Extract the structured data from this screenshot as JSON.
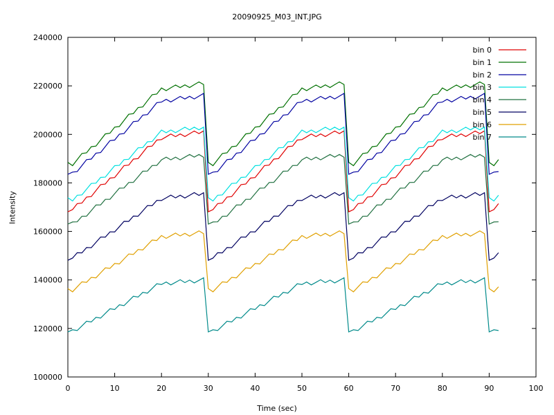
{
  "chart_data": {
    "type": "line",
    "title": "20090925_M03_INT.JPG",
    "xlabel": "Time (sec)",
    "ylabel": "Intensity",
    "xlim": [
      0,
      100
    ],
    "ylim": [
      100000,
      240000
    ],
    "xticks": [
      0,
      10,
      20,
      30,
      40,
      50,
      60,
      70,
      80,
      90,
      100
    ],
    "yticks": [
      100000,
      120000,
      140000,
      160000,
      180000,
      200000,
      220000,
      240000
    ],
    "grid": false,
    "legend_position": "top-right",
    "x": [
      0,
      1,
      2,
      3,
      4,
      5,
      6,
      7,
      8,
      9,
      10,
      11,
      12,
      13,
      14,
      15,
      16,
      17,
      18,
      19,
      20,
      21,
      22,
      23,
      24,
      25,
      26,
      27,
      28,
      29,
      30,
      31,
      32,
      33,
      34,
      35,
      36,
      37,
      38,
      39,
      40,
      41,
      42,
      43,
      44,
      45,
      46,
      47,
      48,
      49,
      50,
      51,
      52,
      53,
      54,
      55,
      56,
      57,
      58,
      59,
      60,
      61,
      62,
      63,
      64,
      65,
      66,
      67,
      68,
      69,
      70,
      71,
      72,
      73,
      74,
      75,
      76,
      77,
      78,
      79,
      80,
      81,
      82,
      83,
      84,
      85,
      86,
      87,
      88,
      89,
      90,
      91,
      92
    ],
    "series": [
      {
        "name": "bin 0",
        "color": "#e00000",
        "base": 169000,
        "amp": 32000
      },
      {
        "name": "bin 1",
        "color": "#007000",
        "base": 188000,
        "amp": 33000
      },
      {
        "name": "bin 2",
        "color": "#0000a0",
        "base": 184000,
        "amp": 32000
      },
      {
        "name": "bin 3",
        "color": "#00e0e0",
        "base": 173000,
        "amp": 30000
      },
      {
        "name": "bin 4",
        "color": "#207040",
        "base": 163000,
        "amp": 28500
      },
      {
        "name": "bin 5",
        "color": "#000060",
        "base": 149000,
        "amp": 26500
      },
      {
        "name": "bin 6",
        "color": "#e0a000",
        "base": 136000,
        "amp": 23500
      },
      {
        "name": "bin 7",
        "color": "#008a8a",
        "base": 119000,
        "amp": 21000
      }
    ]
  }
}
